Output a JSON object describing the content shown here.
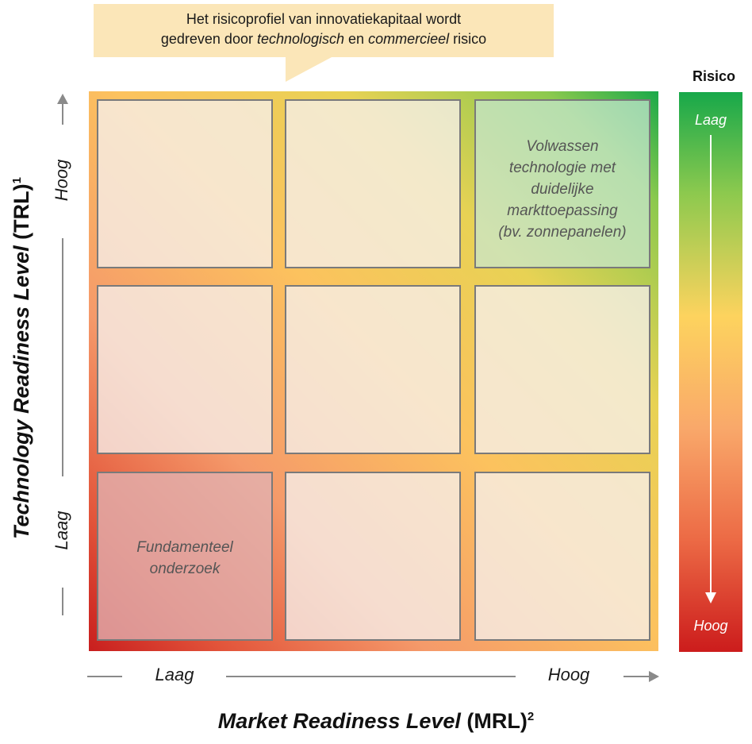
{
  "callout": {
    "line1": "Het risicoprofiel van innovatiekapitaal wordt",
    "line2_a": "gedreven door ",
    "line2_b": "technologisch",
    "line2_c": " en ",
    "line2_d": "commercieel",
    "line2_e": " risico"
  },
  "grid": {
    "top_right_lines": [
      "Volwassen",
      "technologie met",
      "duidelijke",
      "markttoepassing",
      "(bv. zonnepanelen)"
    ],
    "bottom_left_lines": [
      "Fundamenteel",
      "onderzoek"
    ]
  },
  "y_axis": {
    "title_italic": "Technology Readiness Level",
    "title_plain": " (TRL)",
    "title_sup": "1",
    "high": "Hoog",
    "low": "Laag"
  },
  "x_axis": {
    "title_italic": "Market Readiness Level",
    "title_plain": " (MRL)",
    "title_sup": "2",
    "low": "Laag",
    "high": "Hoog"
  },
  "risk": {
    "title": "Risico",
    "top_label": "Laag",
    "bottom_label": "Hoog"
  },
  "colors": {
    "low_risk": "#19a84a",
    "mid_risk": "#fcc25e",
    "high_risk": "#c81e1e",
    "callout_bg": "#fbe6b8"
  }
}
